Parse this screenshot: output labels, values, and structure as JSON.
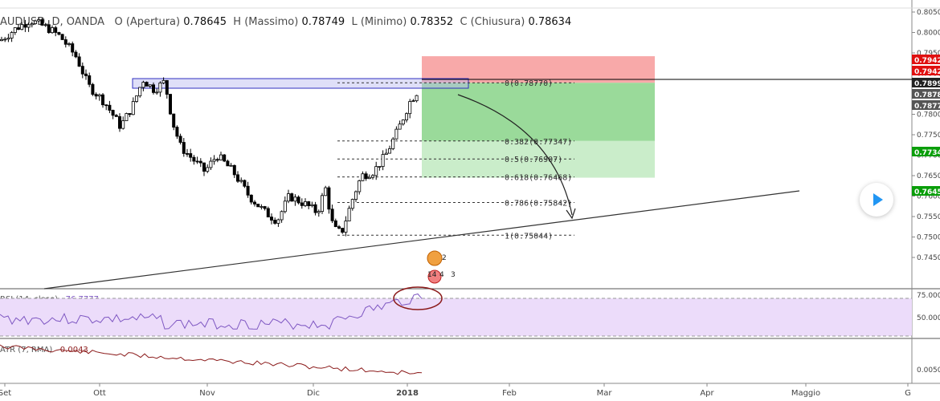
{
  "header": {
    "symbol": "AUDUSD, D, OANDA",
    "open_label": "O (Apertura)",
    "open": "0.78645",
    "high_label": "H (Massimo)",
    "high": "0.78749",
    "low_label": "L (Minimo)",
    "low": "0.78352",
    "close_label": "C (Chiusura)",
    "close": "0.78634"
  },
  "rsi_label": "RSI (14, close)",
  "rsi_value": "76.7777",
  "atr_label": "ATR (7, RMA)",
  "atr_value": "0.0043",
  "colors": {
    "up": "#ffffff",
    "down": "#000000",
    "tp": "#4caf50",
    "sl": "#f44336",
    "rsi": "#7e57c2",
    "atr": "#8b1a1a",
    "badge_green": "#0a9e0a",
    "badge_red": "#e01010",
    "badge_dark": "#333333"
  },
  "chart_data": {
    "type": "candlestick",
    "x_ticks": [
      "Set",
      "Ott",
      "Nov",
      "Dic",
      "2018",
      "Feb",
      "Mar",
      "Apr",
      "Maggio",
      "G"
    ],
    "y_ticks": [
      "0.80500",
      "0.80000",
      "0.79500",
      "0.79000",
      "0.78500",
      "0.78000",
      "0.77500",
      "0.77000",
      "0.76500",
      "0.76000",
      "0.75500",
      "0.75000",
      "0.74500"
    ],
    "price_badges": [
      {
        "text": "0.7942",
        "color": "#e01010"
      },
      {
        "text": "0.7942",
        "color": "#e01010"
      },
      {
        "text": "0.7899",
        "color": "#222222"
      },
      {
        "text": "0.7878",
        "color": "#555555"
      },
      {
        "text": "0.7877",
        "color": "#555555"
      },
      {
        "text": "0.7734",
        "color": "#0a9e0a"
      },
      {
        "text": "0.7645",
        "color": "#0a9e0a"
      }
    ],
    "fib_levels": [
      {
        "label": "0(0.78770)",
        "price": 0.7877
      },
      {
        "label": "0.382(0.77347)",
        "price": 0.77347
      },
      {
        "label": "0.5(0.76907)",
        "price": 0.76907
      },
      {
        "label": "0.618(0.76468)",
        "price": 0.76468
      },
      {
        "label": "0.786(0.75842)",
        "price": 0.75842
      },
      {
        "label": "1(0.75044)",
        "price": 0.75044
      }
    ],
    "position": {
      "entry": 0.7877,
      "stop": 0.7942,
      "target": 0.7645
    },
    "rsi_ticks": [
      "75.0000",
      "50.0000"
    ],
    "atr_ticks": [
      "0.0050"
    ],
    "event_badges": [
      "2",
      "14",
      "4",
      "3"
    ]
  }
}
